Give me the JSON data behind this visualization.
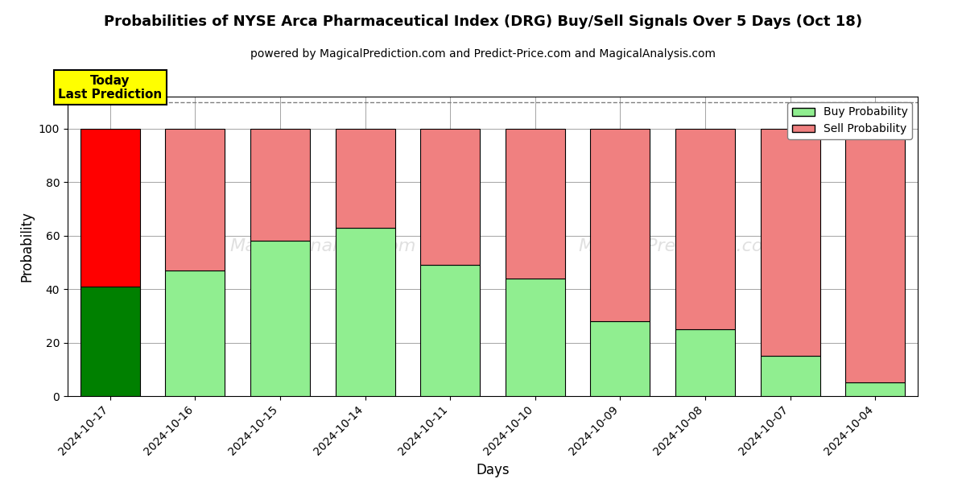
{
  "title": "Probabilities of NYSE Arca Pharmaceutical Index (DRG) Buy/Sell Signals Over 5 Days (Oct 18)",
  "subtitle": "powered by MagicalPrediction.com and Predict-Price.com and MagicalAnalysis.com",
  "xlabel": "Days",
  "ylabel": "Probability",
  "categories": [
    "2024-10-17",
    "2024-10-16",
    "2024-10-15",
    "2024-10-14",
    "2024-10-11",
    "2024-10-10",
    "2024-10-09",
    "2024-10-08",
    "2024-10-07",
    "2024-10-04"
  ],
  "buy_values": [
    41,
    47,
    58,
    63,
    49,
    44,
    28,
    25,
    15,
    5
  ],
  "sell_values": [
    59,
    53,
    42,
    37,
    51,
    56,
    72,
    75,
    85,
    95
  ],
  "today_buy_color": "#008000",
  "today_sell_color": "#ff0000",
  "buy_color": "#90EE90",
  "sell_color": "#F08080",
  "today_label_bg": "#ffff00",
  "today_label_text": "Today\nLast Prediction",
  "ylim": [
    0,
    112
  ],
  "yticks": [
    0,
    20,
    40,
    60,
    80,
    100
  ],
  "dashed_line_y": 110,
  "legend_buy_label": "Buy Probability",
  "legend_sell_label": "Sell Probability",
  "bar_width": 0.7
}
